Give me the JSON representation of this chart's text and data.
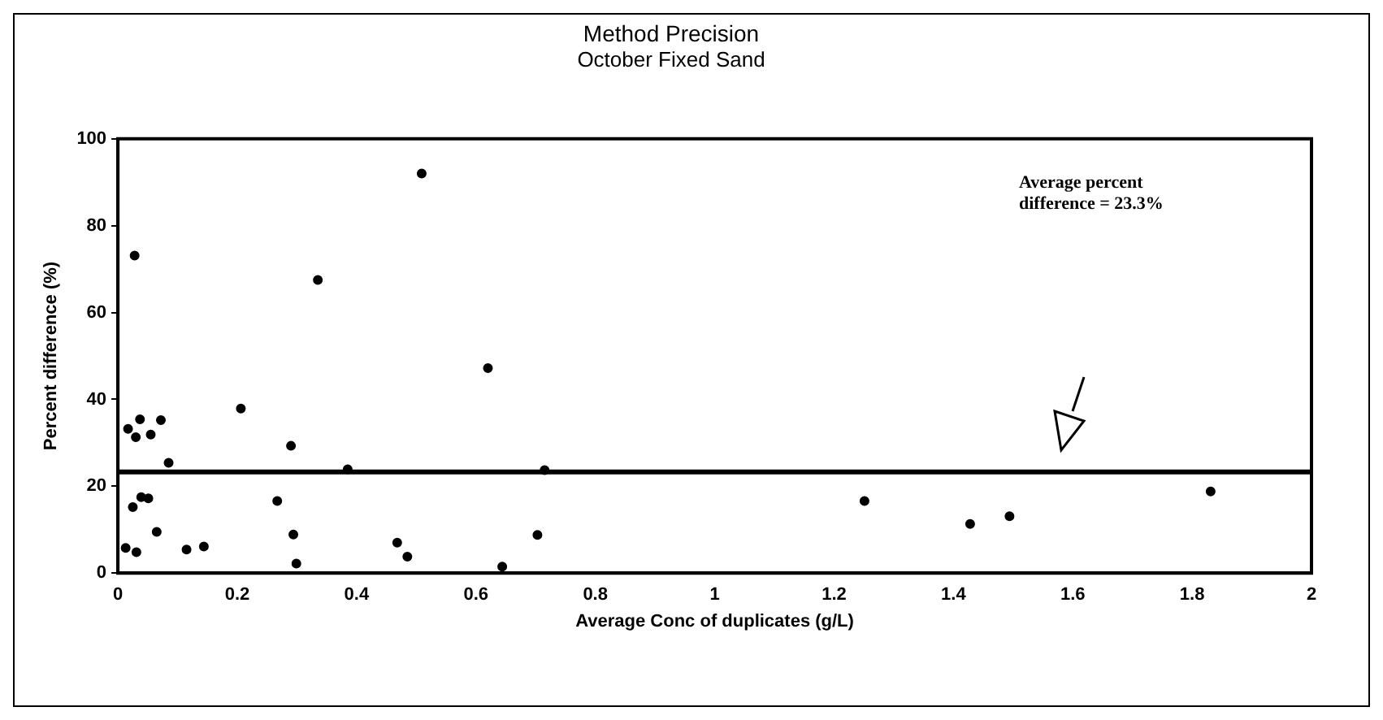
{
  "chart_data": {
    "type": "scatter",
    "title": "Method Precision",
    "subtitle": "October Fixed Sand",
    "xlabel": "Average Conc of duplicates (g/L)",
    "ylabel": "Percent difference (%)",
    "x": [
      0.509,
      0.028,
      0.335,
      0.62,
      0.206,
      0.037,
      0.072,
      0.03,
      0.055,
      0.017,
      0.29,
      0.085,
      0.385,
      0.025,
      0.039,
      0.051,
      0.267,
      0.065,
      0.294,
      0.013,
      0.031,
      0.115,
      0.144,
      0.299,
      0.468,
      0.485,
      0.644,
      0.715,
      0.703,
      1.251,
      1.428,
      1.494,
      1.831
    ],
    "values": [
      92.0,
      73.1,
      67.5,
      47.2,
      37.9,
      35.4,
      35.2,
      31.3,
      31.9,
      33.2,
      29.3,
      25.4,
      23.9,
      15.2,
      17.5,
      17.2,
      16.6,
      9.5,
      8.9,
      5.8,
      4.8,
      5.4,
      6.1,
      2.2,
      7.0,
      3.8,
      1.5,
      23.7,
      8.8,
      16.6,
      11.3,
      13.1,
      18.8
    ],
    "color": "#000000",
    "marker": "circle",
    "xlim": [
      0,
      2
    ],
    "xticks": [
      0,
      0.2,
      0.4,
      0.6,
      0.8,
      1,
      1.2,
      1.4,
      1.6,
      1.8,
      2
    ],
    "ylim": [
      0,
      100
    ],
    "yticks": [
      0,
      20,
      40,
      60,
      80,
      100
    ],
    "ref_lines": [
      {
        "axis": "y",
        "value": 23.3,
        "color": "#000000"
      }
    ],
    "annotations": [
      "Average percent difference = 23.3%"
    ],
    "grid": false,
    "legend": false
  }
}
